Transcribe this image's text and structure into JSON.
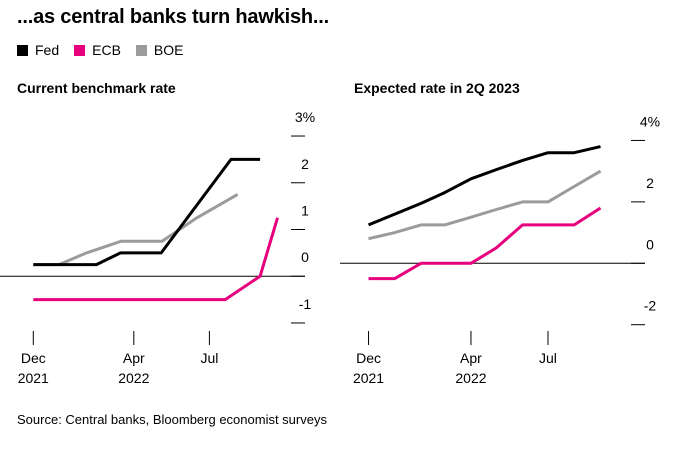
{
  "title": "...as central banks turn hawkish...",
  "legend": [
    {
      "label": "Fed",
      "color": "#000000"
    },
    {
      "label": "ECB",
      "color": "#e6007e"
    },
    {
      "label": "BOE",
      "color": "#9b9b9b"
    }
  ],
  "source": "Source: Central banks, Bloomberg economist surveys",
  "colors": {
    "Fed": "#000000",
    "ECB": "#e6007e",
    "BOE": "#9b9b9b",
    "axis": "#000000",
    "gridline": "#bbbbbb"
  },
  "chart_data": [
    {
      "type": "line",
      "title": "Current benchmark rate",
      "x_ticks": [
        {
          "x": "2021-12-01",
          "label1": "Dec",
          "label2": "2021"
        },
        {
          "x": "2022-04-01",
          "label1": "Apr",
          "label2": "2022"
        },
        {
          "x": "2022-07-01",
          "label1": "Jul",
          "label2": ""
        }
      ],
      "xlim": [
        "2021-11-15",
        "2022-09-30"
      ],
      "y_ticks": [
        -1,
        0,
        1,
        2,
        3
      ],
      "y_tick_labels": [
        "-1",
        "0",
        "1",
        "2",
        "3%"
      ],
      "ylim": [
        -1.3,
        3.3
      ],
      "zero_line": 0,
      "series": [
        {
          "name": "Fed",
          "x": [
            "2021-12-01",
            "2022-01-15",
            "2022-02-15",
            "2022-03-16",
            "2022-05-04",
            "2022-06-15",
            "2022-07-27",
            "2022-08-31"
          ],
          "y": [
            0.25,
            0.25,
            0.25,
            0.5,
            0.5,
            1.5,
            2.5,
            2.5
          ]
        },
        {
          "name": "ECB",
          "x": [
            "2021-12-01",
            "2022-07-20",
            "2022-08-31",
            "2022-09-21"
          ],
          "y": [
            -0.5,
            -0.5,
            0,
            1.25
          ]
        },
        {
          "name": "BOE",
          "x": [
            "2021-12-01",
            "2022-01-01",
            "2022-02-03",
            "2022-03-17",
            "2022-05-05",
            "2022-06-16",
            "2022-08-04"
          ],
          "y": [
            0.25,
            0.25,
            0.5,
            0.75,
            0.75,
            1.25,
            1.75
          ]
        }
      ]
    },
    {
      "type": "line",
      "title": "Expected rate in 2Q 2023",
      "x_ticks": [
        {
          "x": "2021-12-01",
          "label1": "Dec",
          "label2": "2021"
        },
        {
          "x": "2022-04-01",
          "label1": "Apr",
          "label2": "2022"
        },
        {
          "x": "2022-07-01",
          "label1": "Jul",
          "label2": ""
        }
      ],
      "xlim": [
        "2021-11-15",
        "2022-09-30"
      ],
      "y_ticks": [
        -2,
        0,
        2,
        4
      ],
      "y_tick_labels": [
        "-2",
        "0",
        "2",
        "4%"
      ],
      "ylim": [
        -2.4,
        4.6
      ],
      "zero_line": 0,
      "series": [
        {
          "name": "Fed",
          "x": [
            "2021-12-01",
            "2022-01-01",
            "2022-02-01",
            "2022-03-01",
            "2022-04-01",
            "2022-05-01",
            "2022-06-01",
            "2022-07-01",
            "2022-08-01",
            "2022-09-01"
          ],
          "y": [
            1.25,
            1.6,
            1.95,
            2.3,
            2.75,
            3.05,
            3.35,
            3.6,
            3.6,
            3.8
          ]
        },
        {
          "name": "ECB",
          "x": [
            "2021-12-01",
            "2022-01-01",
            "2022-02-01",
            "2022-03-01",
            "2022-04-01",
            "2022-05-01",
            "2022-06-01",
            "2022-07-01",
            "2022-08-01",
            "2022-09-01"
          ],
          "y": [
            -0.5,
            -0.5,
            0.0,
            0.0,
            0.0,
            0.5,
            1.25,
            1.25,
            1.25,
            1.8
          ]
        },
        {
          "name": "BOE",
          "x": [
            "2021-12-01",
            "2022-01-01",
            "2022-02-01",
            "2022-03-01",
            "2022-04-01",
            "2022-05-01",
            "2022-06-01",
            "2022-07-01",
            "2022-08-01",
            "2022-09-01"
          ],
          "y": [
            0.8,
            1.0,
            1.25,
            1.25,
            1.5,
            1.75,
            2.0,
            2.0,
            2.5,
            3.0
          ]
        }
      ]
    }
  ]
}
